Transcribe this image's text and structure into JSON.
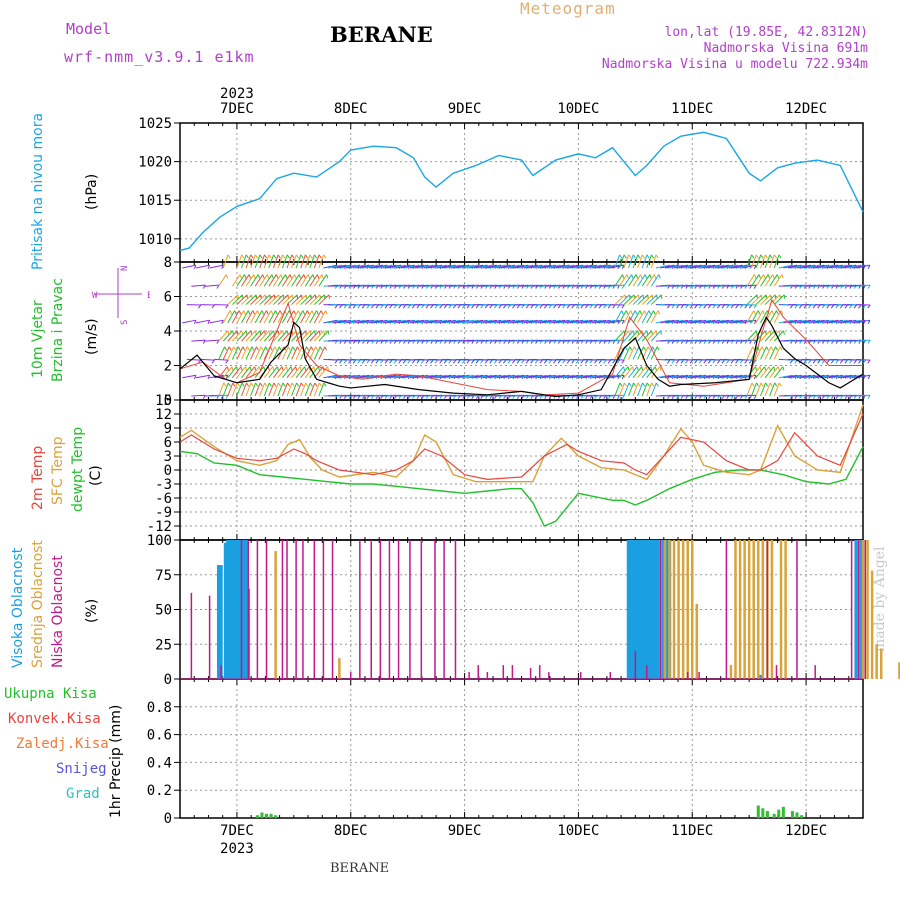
{
  "header": {
    "model_label": "Model",
    "model_name": "wrf-nmm_v3.9.1 e1km",
    "station": "BERANE",
    "product": "Meteogram",
    "coords": "lon,lat (19.85E, 42.8312N)",
    "elevation": "Nadmorska Visina 691m",
    "model_elevation": "Nadmorska Visina u modelu 722.934m"
  },
  "footer": {
    "station": "BERANE"
  },
  "watermark": "made by Angel",
  "colors": {
    "pressure": "#1aa6e6",
    "temp2m": "#e8453c",
    "sfc_temp": "#d9a23a",
    "dewpoint": "#22c02a",
    "cloud_high": "#1aa0e0",
    "cloud_mid": "#d9a23a",
    "cloud_low": "#c0188a",
    "precip": "#2fbf2f",
    "wind_speed": "#000000"
  },
  "panel_labels": {
    "pressure": {
      "name": "Pritisak na nivou mora",
      "unit": "(hPa)"
    },
    "wind": {
      "line1": "10m Vjetar",
      "line2": "Brzina i Pravac",
      "unit": "(m/s)",
      "compass_n": "N",
      "compass_s": "S",
      "compass_w": "W",
      "compass_e": "E"
    },
    "temp": {
      "l1": "2m Temp",
      "l2": "SFC Temp",
      "l3": "dewpt Temp",
      "unit": "(C)"
    },
    "cloud": {
      "l1": "Visoka Oblacnost",
      "l2": "Srednja Oblacnost",
      "l3": "Niska Oblacnost",
      "unit": "(%)"
    },
    "precip": {
      "l1": "Ukupna Kisa",
      "l2": "Konvek.Kisa",
      "l3": "Zaledj.Kisa",
      "l4": "Snijeg",
      "l5": "Grad",
      "unit": "1hr Precip (mm)"
    }
  },
  "chart_data": {
    "type": "line",
    "x_axis": {
      "year": "2023",
      "days": [
        "7DEC",
        "8DEC",
        "9DEC",
        "10DEC",
        "11DEC",
        "12DEC"
      ],
      "range_days": [
        -0.5,
        5.5
      ]
    },
    "panels": [
      {
        "name": "pressure",
        "type": "line",
        "ylabel": "(hPa)",
        "ylim": [
          1007,
          1025
        ],
        "ticks": [
          1010,
          1015,
          1020,
          1025
        ],
        "series": [
          {
            "name": "Pritisak na nivou mora",
            "x": [
              -0.5,
              -0.42,
              -0.3,
              -0.15,
              0,
              0.2,
              0.35,
              0.5,
              0.7,
              0.9,
              1.0,
              1.2,
              1.4,
              1.55,
              1.65,
              1.75,
              1.9,
              2.1,
              2.3,
              2.5,
              2.6,
              2.8,
              3.0,
              3.15,
              3.3,
              3.5,
              3.6,
              3.75,
              3.9,
              4.1,
              4.3,
              4.5,
              4.6,
              4.75,
              4.9,
              5.1,
              5.3,
              5.5
            ],
            "y": [
              1008.5,
              1008.8,
              1010.8,
              1012.8,
              1014.2,
              1015.2,
              1017.8,
              1018.5,
              1018.0,
              1020.0,
              1021.5,
              1022.0,
              1021.8,
              1020.5,
              1018.0,
              1016.7,
              1018.5,
              1019.5,
              1020.8,
              1020.2,
              1018.2,
              1020.2,
              1021.0,
              1020.5,
              1021.8,
              1018.2,
              1019.5,
              1022.0,
              1023.3,
              1023.8,
              1023.0,
              1018.5,
              1017.5,
              1019.2,
              1019.8,
              1020.2,
              1019.5,
              1013.5
            ]
          }
        ]
      },
      {
        "name": "wind",
        "type": "line",
        "ylabel": "(m/s)",
        "ylim": [
          0,
          8
        ],
        "ticks": [
          0,
          2,
          4,
          6,
          8
        ],
        "series": [
          {
            "name": "speed_black",
            "x": [
              -0.5,
              -0.35,
              -0.2,
              -0.1,
              0,
              0.2,
              0.3,
              0.45,
              0.5,
              0.55,
              0.6,
              0.7,
              0.8,
              0.9,
              1.0,
              1.3,
              1.6,
              1.9,
              2.2,
              2.5,
              2.6,
              2.8,
              3.0,
              3.2,
              3.3,
              3.4,
              3.5,
              3.6,
              3.7,
              3.8,
              3.9,
              4.2,
              4.5,
              4.58,
              4.65,
              4.7,
              4.8,
              4.9,
              5.0,
              5.1,
              5.2,
              5.3,
              5.5
            ],
            "y": [
              1.8,
              2.6,
              1.4,
              1.2,
              1.0,
              1.2,
              2.2,
              3.2,
              4.5,
              4.2,
              2.4,
              1.2,
              1.0,
              0.8,
              0.7,
              0.9,
              0.6,
              0.4,
              0.3,
              0.5,
              0.4,
              0.2,
              0.3,
              0.6,
              1.8,
              3.0,
              3.6,
              2.0,
              1.2,
              0.8,
              0.9,
              1.0,
              1.2,
              3.8,
              4.8,
              4.3,
              3.0,
              2.4,
              2.0,
              1.5,
              1.0,
              0.7,
              1.5
            ]
          },
          {
            "name": "speed_red",
            "x": [
              -0.5,
              -0.3,
              -0.1,
              0,
              0.2,
              0.3,
              0.45,
              0.55,
              0.7,
              0.9,
              1.1,
              1.4,
              1.6,
              1.9,
              2.2,
              2.5,
              2.7,
              3.0,
              3.3,
              3.45,
              3.6,
              3.8,
              4.1,
              4.5,
              4.6,
              4.7,
              4.8,
              5.0,
              5.2,
              5.5
            ],
            "y": [
              1.8,
              2.2,
              1.2,
              1.0,
              1.6,
              3.2,
              5.6,
              3.2,
              2.0,
              1.4,
              1.2,
              1.5,
              1.4,
              1.0,
              0.6,
              0.5,
              0.3,
              0.4,
              1.5,
              4.8,
              3.5,
              1.0,
              0.8,
              1.2,
              3.6,
              5.8,
              4.8,
              3.5,
              2.0,
              2.0
            ]
          }
        ]
      },
      {
        "name": "temperature",
        "type": "line",
        "ylabel": "(C)",
        "ylim": [
          -15,
          15
        ],
        "ticks": [
          -12,
          -9,
          -6,
          -3,
          0,
          3,
          6,
          9,
          12,
          15
        ],
        "series": [
          {
            "name": "2m Temp",
            "x": [
              -0.5,
              -0.4,
              -0.2,
              0,
              0.2,
              0.35,
              0.5,
              0.6,
              0.7,
              0.9,
              1.2,
              1.4,
              1.55,
              1.65,
              1.8,
              2.0,
              2.2,
              2.5,
              2.7,
              2.9,
              3.0,
              3.2,
              3.4,
              3.5,
              3.6,
              3.75,
              3.9,
              4.1,
              4.3,
              4.5,
              4.6,
              4.75,
              4.9,
              5.1,
              5.3,
              5.5
            ],
            "y": [
              6,
              7.5,
              4.5,
              2.5,
              2,
              2.5,
              4.5,
              3.5,
              2,
              0,
              -1,
              0,
              2,
              4.5,
              3,
              -1,
              -2,
              -1.5,
              3,
              5.5,
              4,
              2,
              1.5,
              0,
              -1,
              3,
              7,
              6,
              2,
              0,
              0,
              2,
              8,
              3,
              1,
              12
            ]
          },
          {
            "name": "SFC Temp",
            "x": [
              -0.5,
              -0.4,
              -0.2,
              0,
              0.2,
              0.35,
              0.45,
              0.55,
              0.65,
              0.75,
              0.9,
              1.2,
              1.4,
              1.55,
              1.65,
              1.75,
              1.9,
              2.1,
              2.3,
              2.6,
              2.7,
              2.85,
              3.0,
              3.2,
              3.4,
              3.55,
              3.6,
              3.75,
              3.9,
              4.0,
              4.1,
              4.3,
              4.5,
              4.6,
              4.75,
              4.9,
              5.1,
              5.3,
              5.5
            ],
            "y": [
              7,
              8.5,
              5,
              2,
              1,
              2,
              5.5,
              6.5,
              2.5,
              0,
              -1.5,
              -0.5,
              -1.5,
              2,
              7.5,
              6,
              -1,
              -2.5,
              -2.5,
              -2.5,
              3,
              6.8,
              3,
              0.5,
              0,
              -1.5,
              -2,
              3,
              8.8,
              6,
              1,
              -0.5,
              -1,
              0,
              9.5,
              3,
              0,
              -0.5,
              14
            ]
          },
          {
            "name": "dewpt Temp",
            "x": [
              -0.5,
              -0.35,
              -0.2,
              0,
              0.2,
              0.4,
              0.6,
              0.8,
              1.0,
              1.2,
              1.4,
              1.6,
              1.8,
              2.0,
              2.2,
              2.4,
              2.5,
              2.6,
              2.7,
              2.8,
              3.0,
              3.1,
              3.2,
              3.3,
              3.4,
              3.5,
              3.6,
              3.8,
              4.0,
              4.2,
              4.4,
              4.6,
              4.8,
              5.0,
              5.2,
              5.35,
              5.5
            ],
            "y": [
              4,
              3.5,
              1.5,
              1,
              -1,
              -1.5,
              -2,
              -2.5,
              -3,
              -3,
              -3.5,
              -4,
              -4.5,
              -5,
              -4.5,
              -4,
              -4,
              -7,
              -12,
              -11,
              -5,
              -5.5,
              -6,
              -6.5,
              -6.5,
              -7.5,
              -6.5,
              -4,
              -2,
              -0.5,
              0,
              0,
              -1,
              -2.5,
              -3,
              -2,
              5
            ]
          }
        ]
      },
      {
        "name": "cloud_cover",
        "type": "bar",
        "ylabel": "(%)",
        "ylim": [
          0,
          100
        ],
        "ticks": [
          0,
          25,
          50,
          75,
          100
        ],
        "series": [
          {
            "name": "Visoka Oblacnost",
            "x": [
              -0.16,
              -0.14,
              -0.1,
              -0.08,
              -0.06,
              -0.04,
              -0.02,
              0,
              0.02,
              0.04,
              0.06,
              0.08,
              0.1,
              3.44,
              3.46,
              3.48,
              3.5,
              3.52,
              3.54,
              3.56,
              3.58,
              3.6,
              3.62,
              3.64,
              3.66,
              3.68,
              3.7,
              3.72,
              3.74,
              3.76,
              3.78,
              3.8,
              4.6,
              5.44,
              5.48
            ],
            "values": [
              82,
              82,
              98,
              100,
              100,
              100,
              100,
              100,
              100,
              100,
              100,
              100,
              65,
              100,
              100,
              100,
              100,
              100,
              100,
              100,
              100,
              100,
              100,
              100,
              100,
              100,
              100,
              100,
              100,
              100,
              100,
              100,
              3,
              100,
              100
            ]
          },
          {
            "name": "Srednja Oblacnost",
            "x": [
              0.34,
              0.9,
              3.72,
              3.76,
              3.8,
              3.84,
              3.88,
              3.92,
              3.96,
              4.0,
              4.04,
              4.34,
              4.38,
              4.42,
              4.46,
              4.5,
              4.54,
              4.58,
              4.62,
              4.66,
              4.7,
              4.78,
              4.82,
              5.46,
              5.5,
              5.54,
              5.58,
              5.62,
              5.66,
              5.82
            ],
            "values": [
              92,
              15,
              100,
              100,
              100,
              100,
              100,
              100,
              100,
              100,
              54,
              10,
              100,
              100,
              100,
              100,
              100,
              100,
              100,
              100,
              100,
              100,
              100,
              100,
              100,
              100,
              78,
              25,
              22,
              12
            ]
          },
          {
            "name": "Niska Oblacnost",
            "x": [
              -0.4,
              -0.24,
              -0.14,
              0.04,
              0.1,
              0.18,
              0.26,
              0.4,
              0.44,
              0.52,
              0.58,
              0.68,
              0.76,
              0.84,
              1.0,
              1.08,
              1.18,
              1.26,
              1.34,
              1.42,
              1.52,
              1.62,
              1.74,
              1.82,
              1.92,
              2.04,
              2.12,
              2.2,
              2.34,
              2.42,
              2.58,
              2.66,
              2.74,
              3.02,
              3.28,
              3.5,
              3.6,
              3.72,
              3.96,
              4.06,
              4.3,
              4.66,
              4.74,
              4.92,
              5.08,
              5.4,
              5.46,
              5.52
            ],
            "values": [
              62,
              60,
              10,
              100,
              100,
              100,
              100,
              100,
              100,
              100,
              100,
              100,
              100,
              100,
              5,
              100,
              100,
              100,
              100,
              100,
              100,
              100,
              100,
              100,
              100,
              5,
              10,
              5,
              10,
              10,
              8,
              10,
              5,
              5,
              5,
              20,
              10,
              100,
              5,
              5,
              100,
              100,
              10,
              100,
              10,
              100,
              100,
              100
            ]
          }
        ]
      },
      {
        "name": "precipitation",
        "type": "bar",
        "ylabel": "1hr Precip (mm)",
        "ylim": [
          0,
          1.0
        ],
        "ticks": [
          0,
          0.2,
          0.4,
          0.6,
          0.8
        ],
        "series": [
          {
            "name": "Ukupna Kisa",
            "x": [
              0.18,
              0.22,
              0.26,
              0.3,
              0.34,
              4.58,
              4.62,
              4.66,
              4.72,
              4.76,
              4.8,
              4.88,
              4.92,
              4.96
            ],
            "values": [
              0.02,
              0.04,
              0.03,
              0.03,
              0.02,
              0.09,
              0.07,
              0.05,
              0.03,
              0.06,
              0.08,
              0.05,
              0.04,
              0.02
            ]
          }
        ]
      }
    ]
  }
}
